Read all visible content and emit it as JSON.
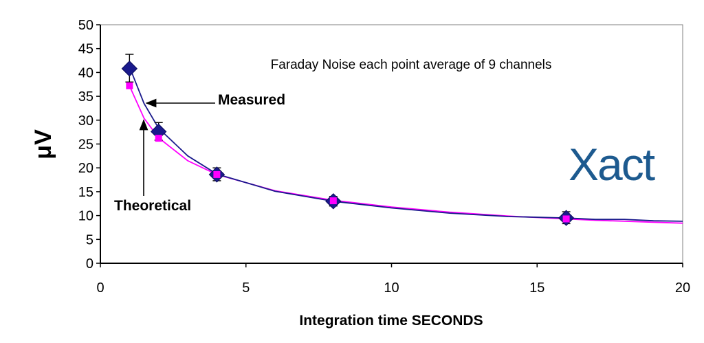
{
  "chart_data": {
    "type": "line",
    "title": "",
    "annotation": "Faraday Noise each point average of 9 channels",
    "xlabel": "Integration time SECONDS",
    "ylabel": "μV",
    "xlim": [
      0,
      20
    ],
    "ylim": [
      0,
      50
    ],
    "x_ticks": [
      0,
      5,
      10,
      15,
      20
    ],
    "y_ticks": [
      0,
      5,
      10,
      15,
      20,
      25,
      30,
      35,
      40,
      45,
      50
    ],
    "grid": false,
    "series": [
      {
        "name": "Measured",
        "color": "#1a1a8c",
        "marker": "diamond",
        "points": {
          "x": [
            1,
            2,
            4,
            8,
            16
          ],
          "y": [
            40.8,
            27.6,
            18.6,
            13.0,
            9.5
          ]
        },
        "error_bars": [
          [
            38.0,
            43.8
          ],
          [
            25.8,
            29.5
          ],
          [
            17.3,
            20.0
          ],
          [
            12.0,
            14.0
          ],
          [
            8.3,
            10.8
          ]
        ],
        "curve": {
          "x": [
            1,
            1.5,
            2,
            3,
            4,
            6,
            8,
            10,
            12,
            14,
            16,
            17,
            18,
            19,
            20
          ],
          "y": [
            41.2,
            33.5,
            28.3,
            22.5,
            18.7,
            15.1,
            13.0,
            11.6,
            10.5,
            9.8,
            9.5,
            9.2,
            9.2,
            8.9,
            8.8
          ]
        }
      },
      {
        "name": "Theoretical",
        "color": "#ff00ff",
        "marker": "square",
        "points": {
          "x": [
            1,
            2,
            4,
            8,
            16
          ],
          "y": [
            37.2,
            26.2,
            18.6,
            13.1,
            9.3
          ]
        },
        "curve": {
          "x": [
            1,
            1.5,
            2,
            3,
            4,
            6,
            8,
            10,
            12,
            14,
            16,
            17,
            18,
            19,
            20
          ],
          "y": [
            37.2,
            30.4,
            26.3,
            21.5,
            18.6,
            15.2,
            13.2,
            11.8,
            10.7,
            9.9,
            9.3,
            9.0,
            8.8,
            8.6,
            8.4
          ]
        }
      }
    ],
    "logo": "Xact"
  }
}
